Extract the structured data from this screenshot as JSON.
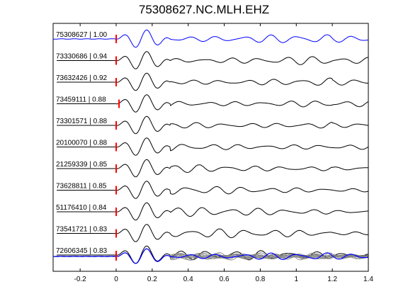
{
  "chart_data": {
    "type": "line",
    "title": "75308627.NC.MLH.EHZ",
    "xlabel": "",
    "ylabel": "",
    "xlim": [
      -0.35,
      1.4
    ],
    "x_ticks": [
      "-0.2",
      "0",
      "0.2",
      "0.4",
      "0.6",
      "0.8",
      "1",
      "1.2",
      "1.4"
    ],
    "x_tick_values": [
      -0.2,
      0,
      0.2,
      0.4,
      0.6,
      0.8,
      1.0,
      1.2,
      1.4
    ],
    "pick_time": 0,
    "grid": false,
    "colors": {
      "reference_trace": "#0000ff",
      "correlated_trace": "#000000",
      "stack_overlay": "#808080",
      "pick_marker": "#ff0000"
    },
    "series": [
      {
        "name": "75308627 | 1.00",
        "event_id": "75308627",
        "cc": 1.0,
        "reference": true
      },
      {
        "name": "73330686 | 0.94",
        "event_id": "73330686",
        "cc": 0.94
      },
      {
        "name": "73632426 | 0.92",
        "event_id": "73632426",
        "cc": 0.92
      },
      {
        "name": "73459111 | 0.88",
        "event_id": "73459111",
        "cc": 0.88
      },
      {
        "name": "73301571 | 0.88",
        "event_id": "73301571",
        "cc": 0.88
      },
      {
        "name": "20100070 | 0.88",
        "event_id": "20100070",
        "cc": 0.88
      },
      {
        "name": "21259339 | 0.85",
        "event_id": "21259339",
        "cc": 0.85
      },
      {
        "name": "73628811 | 0.85",
        "event_id": "73628811",
        "cc": 0.85
      },
      {
        "name": "51176410 | 0.84",
        "event_id": "51176410",
        "cc": 0.84
      },
      {
        "name": "73541721 | 0.83",
        "event_id": "73541721",
        "cc": 0.83
      },
      {
        "name": "72606345 | 0.83",
        "event_id": "72606345",
        "cc": 0.83
      }
    ],
    "stack": {
      "name": "",
      "description_visible": false
    }
  }
}
